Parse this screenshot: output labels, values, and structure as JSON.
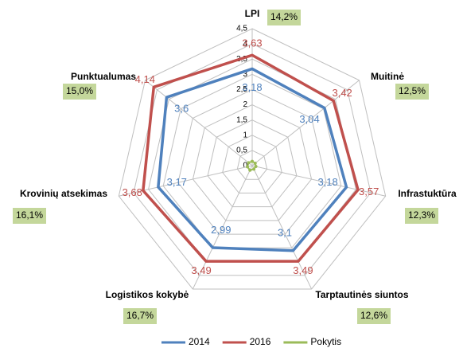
{
  "chart_data": {
    "type": "radar",
    "categories": [
      "LPI",
      "Muitinė",
      "Infrastuktūra",
      "Tarptautinės siuntos",
      "Logistikos kokybė",
      "Krovinių atsekimas",
      "Punktualumas"
    ],
    "series": [
      {
        "name": "2014",
        "color": "#4f81bd",
        "values": [
          3.18,
          3.04,
          3.18,
          3.1,
          2.99,
          3.17,
          3.6
        ],
        "value_labels": [
          "3,18",
          "3,04",
          "3,18",
          "3,1",
          "2,99",
          "3,17",
          "3,6"
        ]
      },
      {
        "name": "2016",
        "color": "#c0504d",
        "values": [
          3.63,
          3.42,
          3.57,
          3.49,
          3.49,
          3.68,
          4.14
        ],
        "value_labels": [
          "3,63",
          "3,42",
          "3,57",
          "3,49",
          "3,49",
          "3,68",
          "4,14"
        ]
      },
      {
        "name": "Pokytis",
        "color": "#9bbb59",
        "values": [
          0.142,
          0.125,
          0.123,
          0.126,
          0.167,
          0.161,
          0.15
        ],
        "value_labels": [
          "14,2%",
          "12,5%",
          "12,3%",
          "12,6%",
          "16,7%",
          "16,1%",
          "15,0%"
        ]
      }
    ],
    "ylim": [
      0,
      4.5
    ],
    "yticks": [
      0,
      {
        "value": 0.5,
        "label": "0,5"
      },
      1,
      {
        "value": 1.5,
        "label": "1,5"
      },
      2,
      {
        "value": 2.5,
        "label": "2,5"
      },
      3,
      {
        "value": 3.5,
        "label": "3,5"
      },
      4,
      {
        "value": 4.5,
        "label": "4,5"
      }
    ],
    "grid": true
  }
}
